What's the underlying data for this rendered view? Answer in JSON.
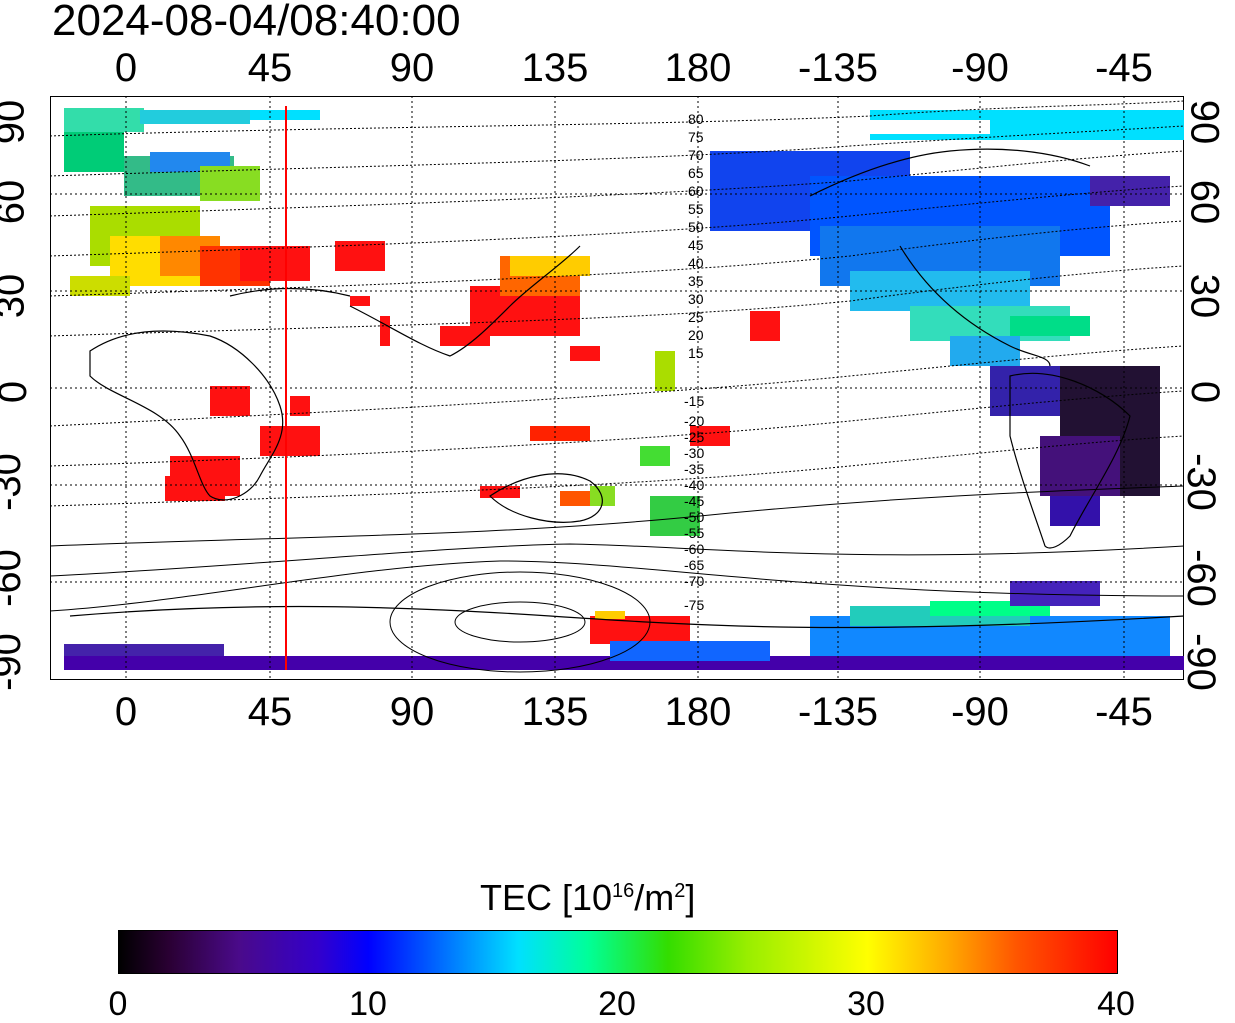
{
  "title": "2024-08-04/08:40:00",
  "axes": {
    "x_top_labels": [
      "0",
      "45",
      "90",
      "135",
      "180",
      "-135",
      "-90",
      "-45"
    ],
    "x_bottom_labels": [
      "0",
      "45",
      "90",
      "135",
      "180",
      "-135",
      "-90",
      "-45"
    ],
    "y_left_labels": [
      "90",
      "60",
      "30",
      "0",
      "-30",
      "-60",
      "-90"
    ],
    "y_right_labels": [
      "90",
      "60",
      "30",
      "0",
      "-30",
      "-60",
      "-90"
    ]
  },
  "map": {
    "marker_longitude": 51,
    "marker_color": "#ff0000",
    "contour_labels_north": [
      "80",
      "75",
      "70",
      "65",
      "60",
      "55",
      "50",
      "45",
      "40",
      "35",
      "30",
      "25",
      "20",
      "15"
    ],
    "contour_labels_south": [
      "-15",
      "-20",
      "-25",
      "-30",
      "-35",
      "-40",
      "-45",
      "-50",
      "-55",
      "-60",
      "-65",
      "-70",
      "-75"
    ]
  },
  "colorbar": {
    "title_prefix": "TEC  [10",
    "title_exp1": "16",
    "title_mid": "/m",
    "title_exp2": "2",
    "title_suffix": "]",
    "ticks": [
      "0",
      "10",
      "20",
      "30",
      "40"
    ],
    "range": [
      0,
      40
    ]
  },
  "colors": {
    "low": "#000000",
    "mid_low": "#0000ff",
    "mid": "#00e0ff",
    "mid_high": "#ffff00",
    "high": "#ff0000"
  }
}
